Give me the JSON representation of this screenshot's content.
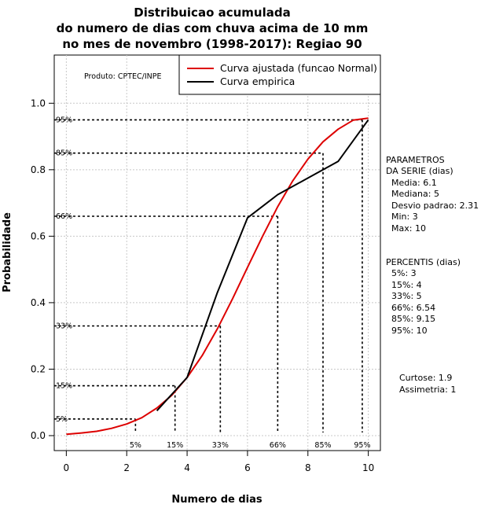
{
  "chart_data": {
    "type": "line",
    "title_lines": [
      "Distribuicao acumulada",
      "do numero de dias com chuva acima de 10 mm",
      "no mes de novembro (1998-2017): Regiao 90"
    ],
    "xlabel": "Numero de dias",
    "ylabel": "Probabilidade",
    "xlim": [
      -0.4,
      10.4
    ],
    "ylim": [
      -0.045,
      1.145
    ],
    "x_ticks": [
      0,
      2,
      4,
      6,
      8,
      10
    ],
    "y_ticks": [
      "0.0",
      "0.2",
      "0.4",
      "0.6",
      "0.8",
      "1.0"
    ],
    "grid": true,
    "product_label": "Produto: CPTEC/INPE",
    "series": [
      {
        "name": "Curva ajustada (funcao Normal)",
        "color": "#dd0000",
        "x": [
          0,
          0.5,
          1,
          1.5,
          2,
          2.5,
          3,
          3.5,
          4,
          4.5,
          5,
          5.5,
          6,
          6.5,
          7,
          7.5,
          8,
          8.5,
          9,
          9.5,
          10
        ],
        "y": [
          0.004,
          0.008,
          0.013,
          0.022,
          0.035,
          0.054,
          0.083,
          0.122,
          0.175,
          0.241,
          0.321,
          0.411,
          0.506,
          0.6,
          0.689,
          0.767,
          0.832,
          0.884,
          0.922,
          0.949,
          0.955
        ]
      },
      {
        "name": "Curva empirica",
        "color": "#000000",
        "x": [
          3,
          4,
          5,
          6,
          7,
          8,
          9,
          10
        ],
        "y": [
          0.075,
          0.175,
          0.43,
          0.655,
          0.725,
          0.775,
          0.825,
          0.95
        ]
      }
    ],
    "percentile_guides": [
      {
        "label": "5%",
        "x": 2.29,
        "y": 0.05
      },
      {
        "label": "15%",
        "x": 3.6,
        "y": 0.15
      },
      {
        "label": "33%",
        "x": 5.1,
        "y": 0.33
      },
      {
        "label": "66%",
        "x": 7.0,
        "y": 0.66
      },
      {
        "label": "85%",
        "x": 8.5,
        "y": 0.85
      },
      {
        "label": "95%",
        "x": 9.8,
        "y": 0.95
      }
    ],
    "parametros": {
      "heading": [
        "PARAMETROS",
        "DA SERIE (dias)"
      ],
      "lines": [
        "Media: 6.1",
        "Mediana: 5",
        "Desvio padrao: 2.31",
        "Min: 3",
        "Max: 10"
      ]
    },
    "percentis": {
      "heading": "PERCENTIS (dias)",
      "lines": [
        "5%: 3",
        "15%: 4",
        "33%: 5",
        "66%: 6.54",
        "85%: 9.15",
        "95%: 10"
      ]
    },
    "shape": {
      "lines": [
        "Curtose: 1.9",
        "Assimetria: 1"
      ]
    }
  }
}
